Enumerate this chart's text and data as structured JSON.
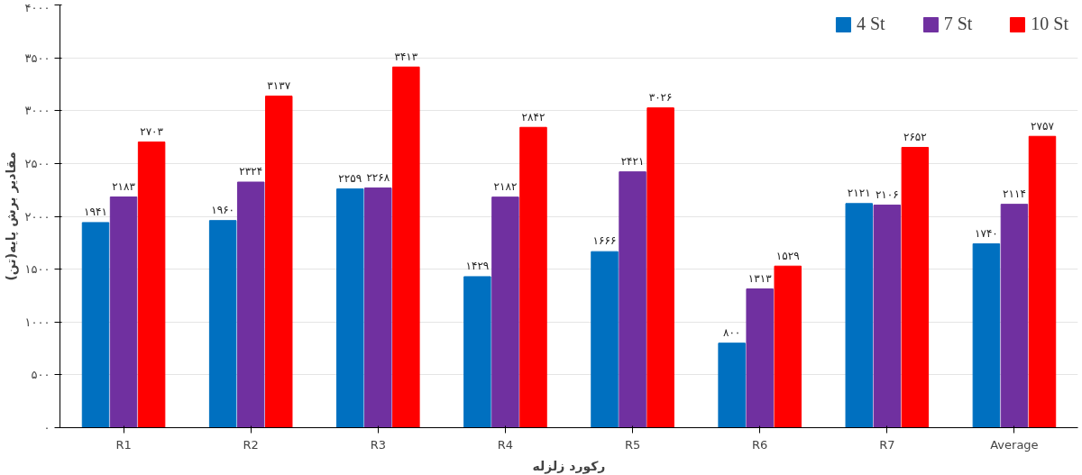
{
  "chart_data": {
    "type": "bar",
    "xlabel": "رکورد زلزله",
    "ylabel": "مقادیر برش پایه(تن)",
    "categories": [
      "R1",
      "R2",
      "R3",
      "R4",
      "R5",
      "R6",
      "R7",
      "Average"
    ],
    "series": [
      {
        "name": "4 St",
        "color": "#0070c0",
        "values": [
          1941,
          1960,
          2259,
          1429,
          1666,
          800,
          2121,
          1740
        ],
        "value_labels": [
          "۱۹۴۱",
          "۱۹۶۰",
          "۲۲۵۹",
          "۱۴۲۹",
          "۱۶۶۶",
          "۸۰۰",
          "۲۱۲۱",
          "۱۷۴۰"
        ]
      },
      {
        "name": "7 St",
        "color": "#7030a0",
        "values": [
          2183,
          2324,
          2268,
          2182,
          2421,
          1313,
          2106,
          2114
        ],
        "value_labels": [
          "۲۱۸۳",
          "۲۳۲۴",
          "۲۲۶۸",
          "۲۱۸۲",
          "۲۴۲۱",
          "۱۳۱۳",
          "۲۱۰۶",
          "۲۱۱۴"
        ]
      },
      {
        "name": "10 St",
        "color": "#ff0000",
        "values": [
          2703,
          3137,
          3413,
          2842,
          3026,
          1529,
          2652,
          2757
        ],
        "value_labels": [
          "۲۷۰۳",
          "۳۱۳۷",
          "۳۴۱۳",
          "۲۸۴۲",
          "۳۰۲۶",
          "۱۵۲۹",
          "۲۶۵۲",
          "۲۷۵۷"
        ]
      }
    ],
    "ylim": [
      0,
      4000
    ],
    "yticks": [
      {
        "value": 0,
        "label": "۰"
      },
      {
        "value": 500,
        "label": "۵۰۰"
      },
      {
        "value": 1000,
        "label": "۱۰۰۰"
      },
      {
        "value": 1500,
        "label": "۱۵۰۰"
      },
      {
        "value": 2000,
        "label": "۲۰۰۰"
      },
      {
        "value": 2500,
        "label": "۲۵۰۰"
      },
      {
        "value": 3000,
        "label": "۳۰۰۰"
      },
      {
        "value": 3500,
        "label": "۳۵۰۰"
      },
      {
        "value": 4000,
        "label": "۴۰۰۰"
      }
    ],
    "grid": "y",
    "legend": "top right"
  }
}
